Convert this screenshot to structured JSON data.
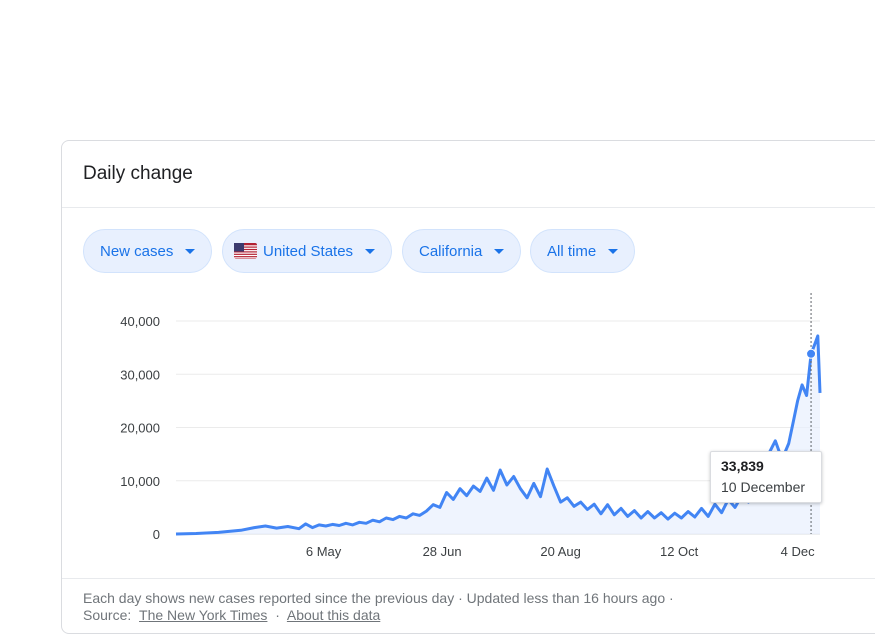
{
  "card": {
    "title": "Daily change"
  },
  "filters": [
    {
      "label": "New cases",
      "icon": "caret-down-icon"
    },
    {
      "label": "United States",
      "icon": "us-flag-icon"
    },
    {
      "label": "California",
      "icon": "caret-down-icon"
    },
    {
      "label": "All time",
      "icon": "caret-down-icon"
    }
  ],
  "tooltip": {
    "value": "33,839",
    "date": "10 December"
  },
  "footer": {
    "line1": "Each day shows new cases reported since the previous day · Updated less than 16 hours ago  ·",
    "source_label": "Source:",
    "source_link": "The New York Times",
    "separator": "·",
    "about_link": "About this data"
  },
  "colors": {
    "line": "#4285f4",
    "area": "#e8f0fe",
    "chip_text": "#1a73e8",
    "chip_bg": "#e8f0fe"
  },
  "chart_data": {
    "type": "area",
    "title": "",
    "xlabel": "",
    "ylabel": "",
    "ylim": [
      0,
      40000
    ],
    "yticks": [
      0,
      10000,
      20000,
      30000,
      40000
    ],
    "ytick_labels": [
      "0",
      "10,000",
      "20,000",
      "30,000",
      "40,000"
    ],
    "xtick_labels": [
      "6 May",
      "28 Jun",
      "20 Aug",
      "12 Oct",
      "4 Dec"
    ],
    "xtick_dates": [
      "2020-05-06",
      "2020-06-28",
      "2020-08-20",
      "2020-10-12",
      "2020-12-04"
    ],
    "x_range": [
      "2020-03-01",
      "2020-12-14"
    ],
    "grid": true,
    "highlight": {
      "date": "2020-12-10",
      "value": 33839
    },
    "series": [
      {
        "points": [
          [
            "2020-03-01",
            0
          ],
          [
            "2020-03-10",
            100
          ],
          [
            "2020-03-20",
            300
          ],
          [
            "2020-03-30",
            700
          ],
          [
            "2020-04-05",
            1200
          ],
          [
            "2020-04-10",
            1500
          ],
          [
            "2020-04-15",
            1100
          ],
          [
            "2020-04-20",
            1400
          ],
          [
            "2020-04-25",
            1000
          ],
          [
            "2020-04-28",
            1900
          ],
          [
            "2020-05-01",
            1200
          ],
          [
            "2020-05-04",
            1700
          ],
          [
            "2020-05-07",
            1500
          ],
          [
            "2020-05-10",
            1800
          ],
          [
            "2020-05-13",
            1600
          ],
          [
            "2020-05-16",
            2000
          ],
          [
            "2020-05-19",
            1700
          ],
          [
            "2020-05-22",
            2200
          ],
          [
            "2020-05-25",
            2000
          ],
          [
            "2020-05-28",
            2600
          ],
          [
            "2020-05-31",
            2300
          ],
          [
            "2020-06-03",
            3000
          ],
          [
            "2020-06-06",
            2700
          ],
          [
            "2020-06-09",
            3300
          ],
          [
            "2020-06-12",
            3000
          ],
          [
            "2020-06-15",
            3800
          ],
          [
            "2020-06-18",
            3500
          ],
          [
            "2020-06-21",
            4300
          ],
          [
            "2020-06-24",
            5500
          ],
          [
            "2020-06-27",
            5000
          ],
          [
            "2020-06-30",
            7800
          ],
          [
            "2020-07-03",
            6500
          ],
          [
            "2020-07-06",
            8500
          ],
          [
            "2020-07-09",
            7200
          ],
          [
            "2020-07-12",
            9000
          ],
          [
            "2020-07-15",
            8000
          ],
          [
            "2020-07-18",
            10500
          ],
          [
            "2020-07-21",
            8200
          ],
          [
            "2020-07-24",
            12000
          ],
          [
            "2020-07-27",
            9200
          ],
          [
            "2020-07-30",
            10800
          ],
          [
            "2020-08-02",
            8500
          ],
          [
            "2020-08-05",
            6800
          ],
          [
            "2020-08-08",
            9500
          ],
          [
            "2020-08-11",
            7000
          ],
          [
            "2020-08-14",
            12200
          ],
          [
            "2020-08-17",
            9000
          ],
          [
            "2020-08-20",
            6000
          ],
          [
            "2020-08-23",
            6800
          ],
          [
            "2020-08-26",
            5200
          ],
          [
            "2020-08-29",
            6000
          ],
          [
            "2020-09-01",
            4600
          ],
          [
            "2020-09-04",
            5600
          ],
          [
            "2020-09-07",
            3800
          ],
          [
            "2020-09-10",
            5500
          ],
          [
            "2020-09-13",
            3600
          ],
          [
            "2020-09-16",
            4800
          ],
          [
            "2020-09-19",
            3300
          ],
          [
            "2020-09-22",
            4400
          ],
          [
            "2020-09-25",
            3000
          ],
          [
            "2020-09-28",
            4200
          ],
          [
            "2020-10-01",
            3000
          ],
          [
            "2020-10-04",
            4000
          ],
          [
            "2020-10-07",
            2800
          ],
          [
            "2020-10-10",
            3900
          ],
          [
            "2020-10-13",
            3000
          ],
          [
            "2020-10-16",
            4200
          ],
          [
            "2020-10-19",
            3200
          ],
          [
            "2020-10-22",
            4800
          ],
          [
            "2020-10-25",
            3300
          ],
          [
            "2020-10-28",
            5600
          ],
          [
            "2020-10-31",
            4000
          ],
          [
            "2020-11-03",
            6500
          ],
          [
            "2020-11-06",
            5000
          ],
          [
            "2020-11-09",
            7200
          ],
          [
            "2020-11-12",
            6000
          ],
          [
            "2020-11-15",
            9000
          ],
          [
            "2020-11-18",
            12000
          ],
          [
            "2020-11-21",
            15000
          ],
          [
            "2020-11-24",
            17500
          ],
          [
            "2020-11-27",
            14000
          ],
          [
            "2020-11-30",
            17000
          ],
          [
            "2020-12-02",
            21000
          ],
          [
            "2020-12-04",
            25000
          ],
          [
            "2020-12-06",
            28000
          ],
          [
            "2020-12-08",
            26000
          ],
          [
            "2020-12-10",
            33839
          ],
          [
            "2020-12-12",
            36000
          ],
          [
            "2020-12-13",
            37200
          ],
          [
            "2020-12-14",
            26500
          ]
        ]
      }
    ]
  }
}
